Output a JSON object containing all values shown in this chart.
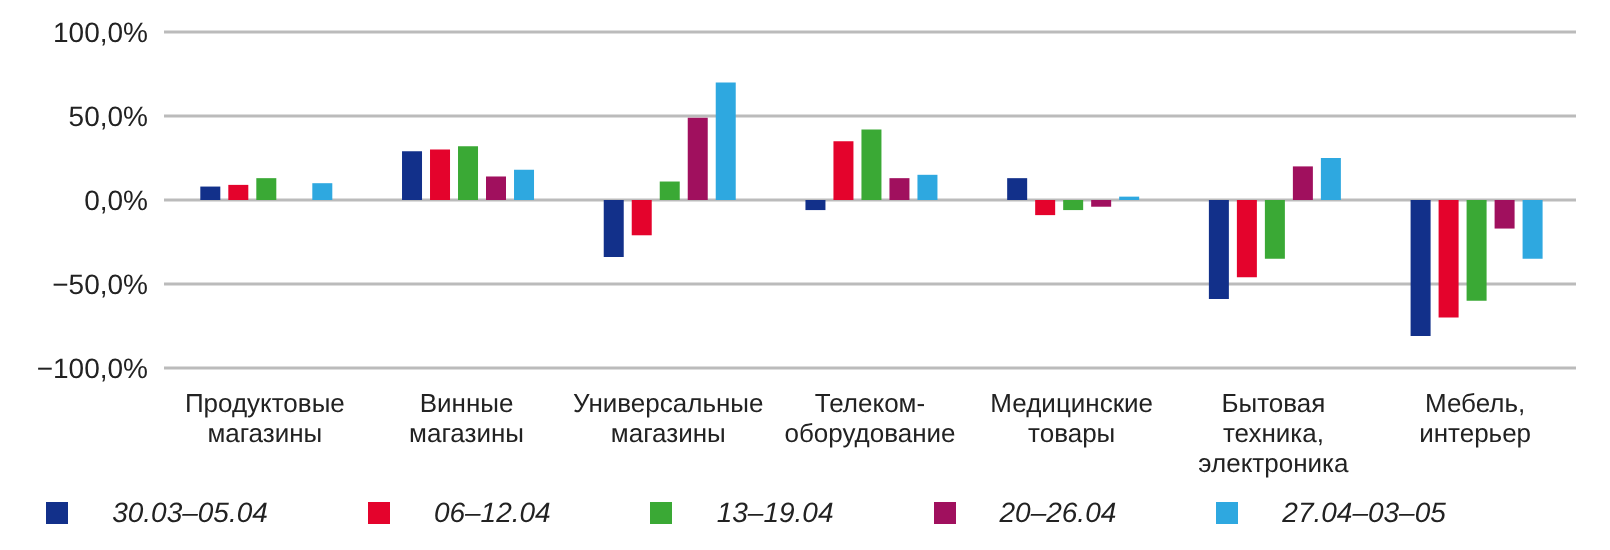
{
  "chart_data": {
    "type": "bar",
    "categories": [
      "Продуктовые\nмагазины",
      "Винные\nмагазины",
      "Универсальные\nмагазины",
      "Телеком-\nоборудование",
      "Медицинские\nтовары",
      "Бытовая\nтехника,\nэлектроника",
      "Мебель,\nинтерьер"
    ],
    "series": [
      {
        "name": "30.03–05.04",
        "color": "#12308a",
        "values": [
          8,
          29,
          -34,
          -6,
          13,
          -59,
          -81
        ]
      },
      {
        "name": "06–12.04",
        "color": "#e4032c",
        "values": [
          9,
          30,
          -21,
          35,
          -9,
          -46,
          -70
        ]
      },
      {
        "name": "13–19.04",
        "color": "#3aa935",
        "values": [
          13,
          32,
          11,
          42,
          -6,
          -35,
          -60
        ]
      },
      {
        "name": "20–26.04",
        "color": "#a0105e",
        "values": [
          null,
          14,
          49,
          13,
          -4,
          20,
          -17
        ]
      },
      {
        "name": "27.04–03–05",
        "color": "#2ea8e0",
        "values": [
          10,
          18,
          70,
          15,
          2,
          25,
          -35
        ]
      }
    ],
    "ylim": [
      -100,
      100
    ],
    "yticks": [
      {
        "value": -100,
        "label": "−100,0%"
      },
      {
        "value": -50,
        "label": "−50,0%"
      },
      {
        "value": 0,
        "label": "0,0%"
      },
      {
        "value": 50,
        "label": "50,0%"
      },
      {
        "value": 100,
        "label": "100,0%"
      }
    ],
    "grid": "y",
    "legend": "bottom"
  }
}
